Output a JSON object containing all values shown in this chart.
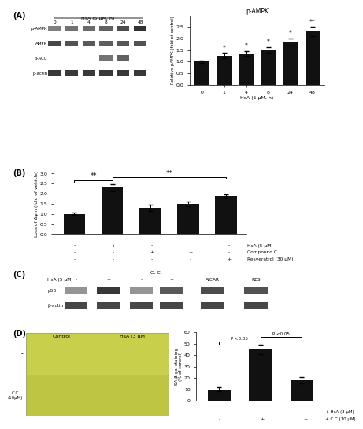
{
  "panel_A_bar": {
    "title": "p-AMPK",
    "xlabel": "HsA (5 μM, h)",
    "ylabel": "Relative pAMPK (fold of control)",
    "categories": [
      "0",
      "1",
      "4",
      "8",
      "24",
      "48"
    ],
    "values": [
      1.0,
      1.25,
      1.35,
      1.5,
      1.85,
      2.3
    ],
    "errors": [
      0.05,
      0.12,
      0.1,
      0.12,
      0.15,
      0.2
    ],
    "sig_labels": [
      "",
      "*",
      "*",
      "*",
      "*",
      "**"
    ],
    "ylim": [
      0,
      3.0
    ],
    "yticks": [
      0.0,
      0.5,
      1.0,
      1.5,
      2.0,
      2.5
    ],
    "bar_color": "#111111"
  },
  "panel_B_bar": {
    "ylabel": "Loss of Δψm (fold of vehicle)",
    "values": [
      1.0,
      2.3,
      1.3,
      1.5,
      1.9
    ],
    "errors": [
      0.05,
      0.18,
      0.15,
      0.12,
      0.08
    ],
    "ylim": [
      0,
      3.0
    ],
    "yticks": [
      0.0,
      0.5,
      1.0,
      1.5,
      2.0,
      2.5,
      3.0
    ],
    "bar_color": "#111111",
    "leg_labels": [
      "HsA (5 μM)",
      "Compound C",
      "Resveratrol (30 μM)"
    ],
    "leg_signs": [
      [
        "-",
        "+",
        "-",
        "+",
        "-"
      ],
      [
        "-",
        "-",
        "+",
        "+",
        "-"
      ],
      [
        "-",
        "-",
        "-",
        "-",
        "+"
      ]
    ]
  },
  "panel_D_bar": {
    "ylabel": "SA-β-gal staining\n(% of control)",
    "values": [
      10,
      45,
      18
    ],
    "errors": [
      1.5,
      4,
      3
    ],
    "ylim": [
      0,
      60
    ],
    "yticks": [
      0,
      10,
      20,
      30,
      40,
      50,
      60
    ],
    "bar_color": "#111111",
    "leg_labels": [
      "+ HsA (3 μM)",
      "+ C.C (10 μM)"
    ],
    "leg_signs": [
      [
        "-",
        "-",
        "+"
      ],
      [
        "-",
        "+",
        "+"
      ]
    ]
  },
  "bg_color": "#ffffff"
}
